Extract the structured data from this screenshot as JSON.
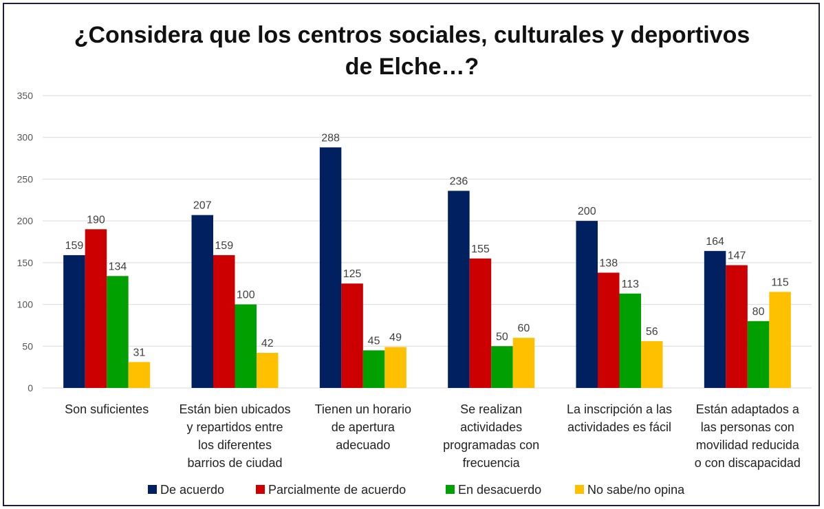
{
  "title_lines": [
    "¿Considera que los centros sociales, culturales y deportivos",
    "de Elche…?"
  ],
  "chart_data": {
    "type": "bar",
    "title": "¿Considera que los centros sociales, culturales y deportivos de Elche…?",
    "xlabel": "",
    "ylabel": "",
    "ylim": [
      0,
      350
    ],
    "yticks": [
      0,
      50,
      100,
      150,
      200,
      250,
      300,
      350
    ],
    "grid": true,
    "legend_position": "bottom",
    "categories": [
      [
        "Son suficientes"
      ],
      [
        "Están bien ubicados",
        "y repartidos entre",
        "los diferentes",
        "barrios de ciudad"
      ],
      [
        "Tienen un horario",
        "de apertura",
        "adecuado"
      ],
      [
        "Se realizan",
        "actividades",
        "programadas con",
        "frecuencia"
      ],
      [
        "La inscripción a las",
        "actividades es fácil"
      ],
      [
        "Están adaptados a",
        "las personas con",
        "movilidad reducida",
        "o con discapacidad"
      ]
    ],
    "series": [
      {
        "name": "De acuerdo",
        "color": "#002060",
        "values": [
          159,
          207,
          288,
          236,
          200,
          164
        ]
      },
      {
        "name": "Parcialmente de acuerdo",
        "color": "#cc0000",
        "values": [
          190,
          159,
          125,
          155,
          138,
          147
        ]
      },
      {
        "name": "En desacuerdo",
        "color": "#00a000",
        "values": [
          134,
          100,
          45,
          50,
          113,
          80
        ]
      },
      {
        "name": "No sabe/no opina",
        "color": "#ffc000",
        "values": [
          31,
          42,
          49,
          60,
          56,
          115
        ]
      }
    ]
  }
}
